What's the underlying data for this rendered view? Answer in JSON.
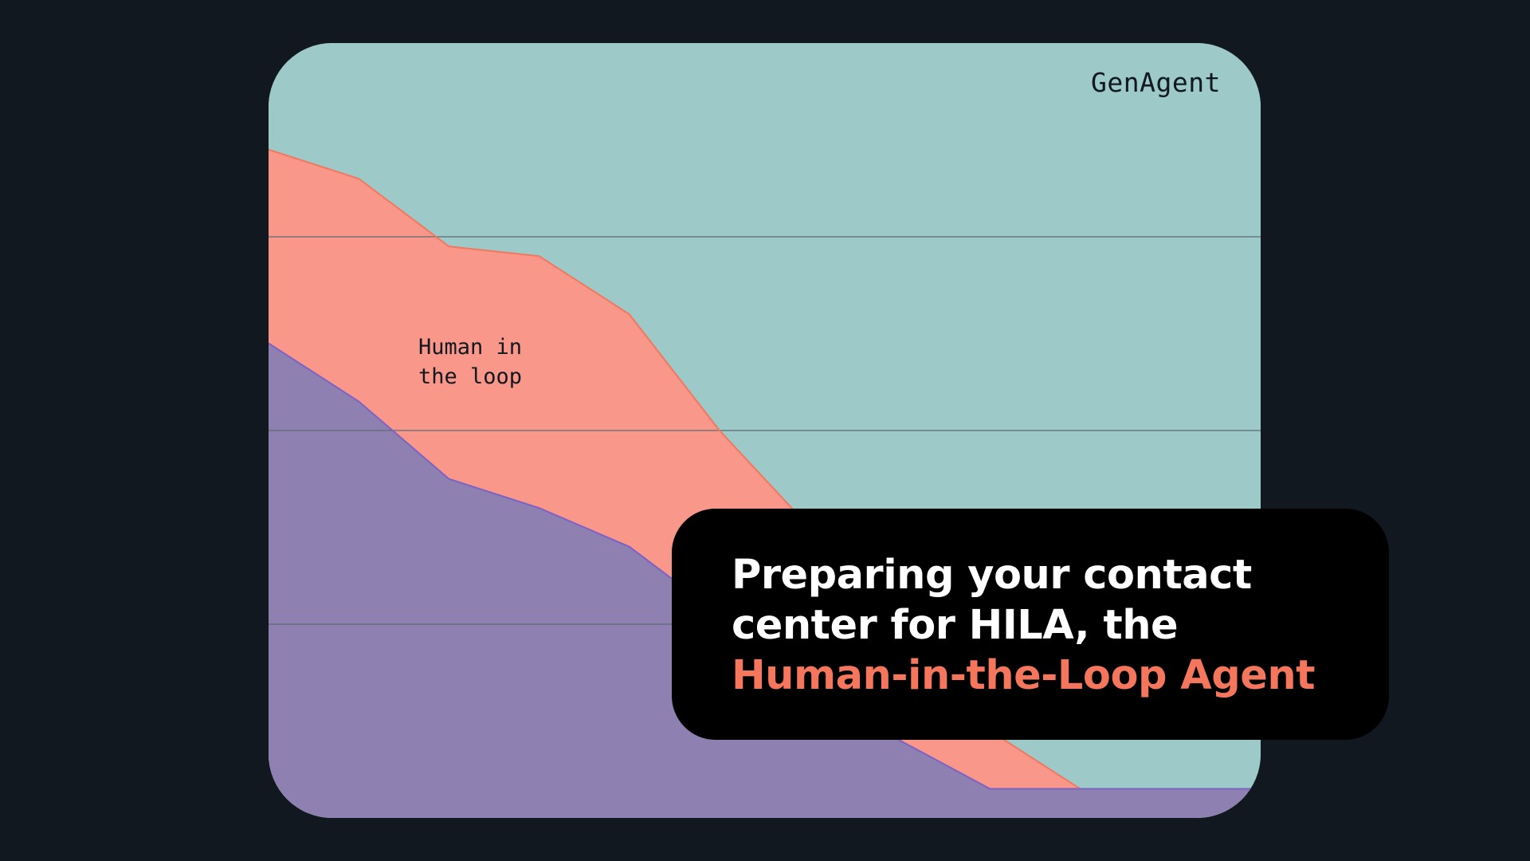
{
  "brand": "GenAgent",
  "colors": {
    "background": "#111820",
    "top_area": "#9dc9c8",
    "middle_area": "#f8978a",
    "bottom_area": "#8f80b2",
    "middle_edge": "#f4765c",
    "bottom_edge": "#7c62c4",
    "callout_bg": "#000000",
    "callout_text": "#ffffff",
    "callout_highlight": "#f4765c"
  },
  "chart_data": {
    "type": "area",
    "stacked": true,
    "grid": true,
    "xlabel": "",
    "ylabel": "",
    "ylim": [
      0,
      4
    ],
    "x": [
      0,
      1,
      2,
      3,
      4,
      5,
      6,
      7,
      8,
      9,
      10,
      11
    ],
    "series": [
      {
        "name": "",
        "values": [
          2.45,
          2.15,
          1.75,
          1.6,
          1.4,
          1.05,
          0.7,
          0.4,
          0.15,
          0.15,
          0.15,
          0.15
        ]
      },
      {
        "name": "Human in the loop",
        "values": [
          1.0,
          1.15,
          1.2,
          1.3,
          1.2,
          0.95,
          0.8,
          0.55,
          0.3,
          0.0,
          0.0,
          0.0
        ]
      }
    ],
    "annotations": [
      {
        "text": "Human in\nthe loop",
        "series": "Human in the loop"
      }
    ]
  },
  "callout": {
    "line1": "Preparing your contact",
    "line2": "center for HILA, the",
    "line3": "Human-in-the-Loop Agent"
  }
}
